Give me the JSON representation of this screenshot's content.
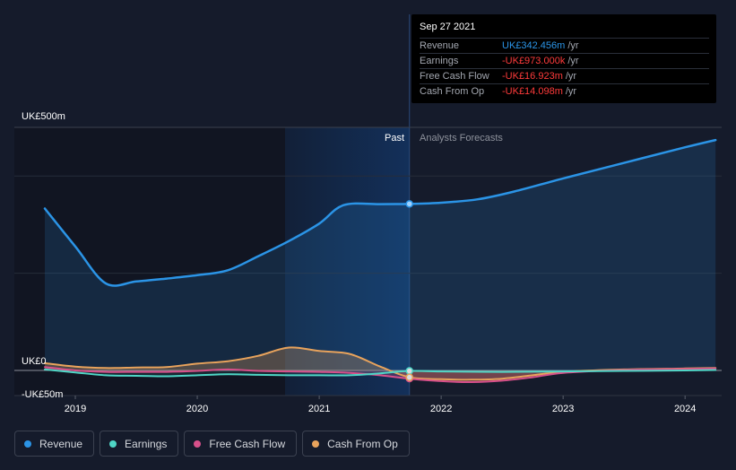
{
  "tooltip": {
    "date": "Sep 27 2021",
    "rows": [
      {
        "label": "Revenue",
        "value": "UK£342.456m",
        "unit": "/yr",
        "color": "#2b94e6"
      },
      {
        "label": "Earnings",
        "value": "-UK£973.000k",
        "unit": "/yr",
        "color": "#ff3b3b"
      },
      {
        "label": "Free Cash Flow",
        "value": "-UK£16.923m",
        "unit": "/yr",
        "color": "#ff3b3b"
      },
      {
        "label": "Cash From Op",
        "value": "-UK£14.098m",
        "unit": "/yr",
        "color": "#ff3b3b"
      }
    ]
  },
  "legend": [
    {
      "label": "Revenue",
      "color": "#2b94e6"
    },
    {
      "label": "Earnings",
      "color": "#4fd6c6"
    },
    {
      "label": "Free Cash Flow",
      "color": "#d7508a"
    },
    {
      "label": "Cash From Op",
      "color": "#e8a35c"
    }
  ],
  "chart_data": {
    "type": "line",
    "y_tick_labels": [
      "UK£500m",
      "UK£0",
      "-UK£50m"
    ],
    "x_tick_labels": [
      "2019",
      "2020",
      "2021",
      "2022",
      "2023",
      "2024"
    ],
    "ylim": [
      -50,
      500
    ],
    "xlim": [
      2018.5,
      2024.3
    ],
    "past_label": "Past",
    "forecast_label": "Analysts Forecasts",
    "divider_x": 2021.74,
    "highlight_range": [
      2020.72,
      2021.74
    ],
    "series": [
      {
        "name": "Revenue",
        "color": "#2b94e6",
        "points": [
          [
            2018.75,
            333
          ],
          [
            2019.0,
            255
          ],
          [
            2019.25,
            179
          ],
          [
            2019.5,
            183
          ],
          [
            2019.75,
            189
          ],
          [
            2020.0,
            196
          ],
          [
            2020.25,
            206
          ],
          [
            2020.5,
            235
          ],
          [
            2020.75,
            266
          ],
          [
            2021.0,
            302
          ],
          [
            2021.2,
            340
          ],
          [
            2021.5,
            342
          ],
          [
            2021.74,
            342.5
          ],
          [
            2022.0,
            345
          ],
          [
            2022.3,
            352
          ],
          [
            2022.6,
            368
          ],
          [
            2023.0,
            395
          ],
          [
            2023.5,
            427
          ],
          [
            2024.0,
            459
          ],
          [
            2024.25,
            474
          ]
        ]
      },
      {
        "name": "Earnings",
        "color": "#4fd6c6",
        "points": [
          [
            2018.75,
            2
          ],
          [
            2019.0,
            -4
          ],
          [
            2019.25,
            -10
          ],
          [
            2019.5,
            -11
          ],
          [
            2019.75,
            -12
          ],
          [
            2020.0,
            -10
          ],
          [
            2020.25,
            -8
          ],
          [
            2020.5,
            -9
          ],
          [
            2020.75,
            -10
          ],
          [
            2021.0,
            -10
          ],
          [
            2021.25,
            -10
          ],
          [
            2021.5,
            -6
          ],
          [
            2021.74,
            -1
          ],
          [
            2022.0,
            -2
          ],
          [
            2022.5,
            -3
          ],
          [
            2023.0,
            -2
          ],
          [
            2023.5,
            -1
          ],
          [
            2024.0,
            0
          ],
          [
            2024.25,
            1
          ]
        ]
      },
      {
        "name": "Free Cash Flow",
        "color": "#d7508a",
        "points": [
          [
            2018.75,
            7
          ],
          [
            2019.0,
            0
          ],
          [
            2019.25,
            -3
          ],
          [
            2019.5,
            -3
          ],
          [
            2019.75,
            -3
          ],
          [
            2020.0,
            -1
          ],
          [
            2020.25,
            2
          ],
          [
            2020.5,
            -1
          ],
          [
            2020.75,
            -2
          ],
          [
            2021.0,
            -3
          ],
          [
            2021.25,
            -5
          ],
          [
            2021.5,
            -10
          ],
          [
            2021.74,
            -16.9
          ],
          [
            2022.0,
            -22
          ],
          [
            2022.25,
            -24
          ],
          [
            2022.5,
            -21
          ],
          [
            2022.75,
            -14
          ],
          [
            2023.0,
            -5
          ],
          [
            2023.5,
            1
          ],
          [
            2024.0,
            3
          ],
          [
            2024.25,
            4
          ]
        ]
      },
      {
        "name": "Cash From Op",
        "color": "#e8a35c",
        "points": [
          [
            2018.75,
            15
          ],
          [
            2019.0,
            8
          ],
          [
            2019.25,
            5
          ],
          [
            2019.5,
            6
          ],
          [
            2019.75,
            7
          ],
          [
            2020.0,
            14
          ],
          [
            2020.25,
            19
          ],
          [
            2020.5,
            30
          ],
          [
            2020.75,
            47
          ],
          [
            2021.0,
            40
          ],
          [
            2021.25,
            34
          ],
          [
            2021.5,
            8
          ],
          [
            2021.74,
            -14.1
          ],
          [
            2022.0,
            -18
          ],
          [
            2022.25,
            -19
          ],
          [
            2022.5,
            -17
          ],
          [
            2022.75,
            -10
          ],
          [
            2023.0,
            -3
          ],
          [
            2023.5,
            2
          ],
          [
            2024.0,
            4
          ],
          [
            2024.25,
            5
          ]
        ]
      }
    ]
  }
}
